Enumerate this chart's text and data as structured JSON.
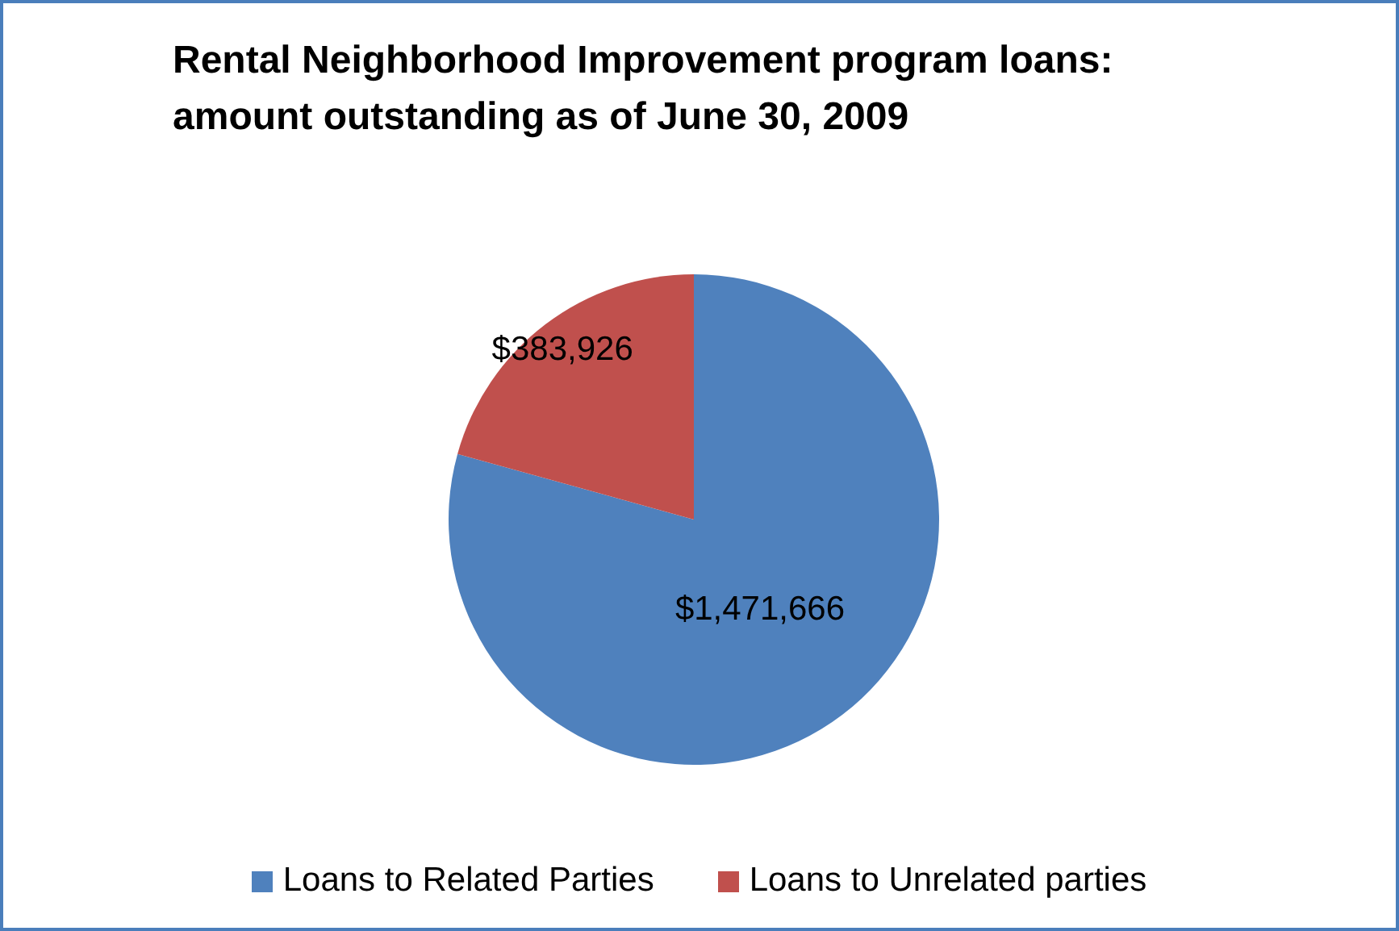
{
  "chart_data": {
    "type": "pie",
    "title": "Rental Neighborhood Improvement program loans:  amount outstanding as of June 30, 2009",
    "categories": [
      "Loans to Related Parties",
      "Loans to Unrelated parties"
    ],
    "values": [
      1471666,
      383926
    ],
    "colors": [
      "#4f81bd",
      "#c0504d"
    ],
    "value_labels": [
      "$1,471,666",
      "$383,926"
    ],
    "legend": "bottom"
  }
}
